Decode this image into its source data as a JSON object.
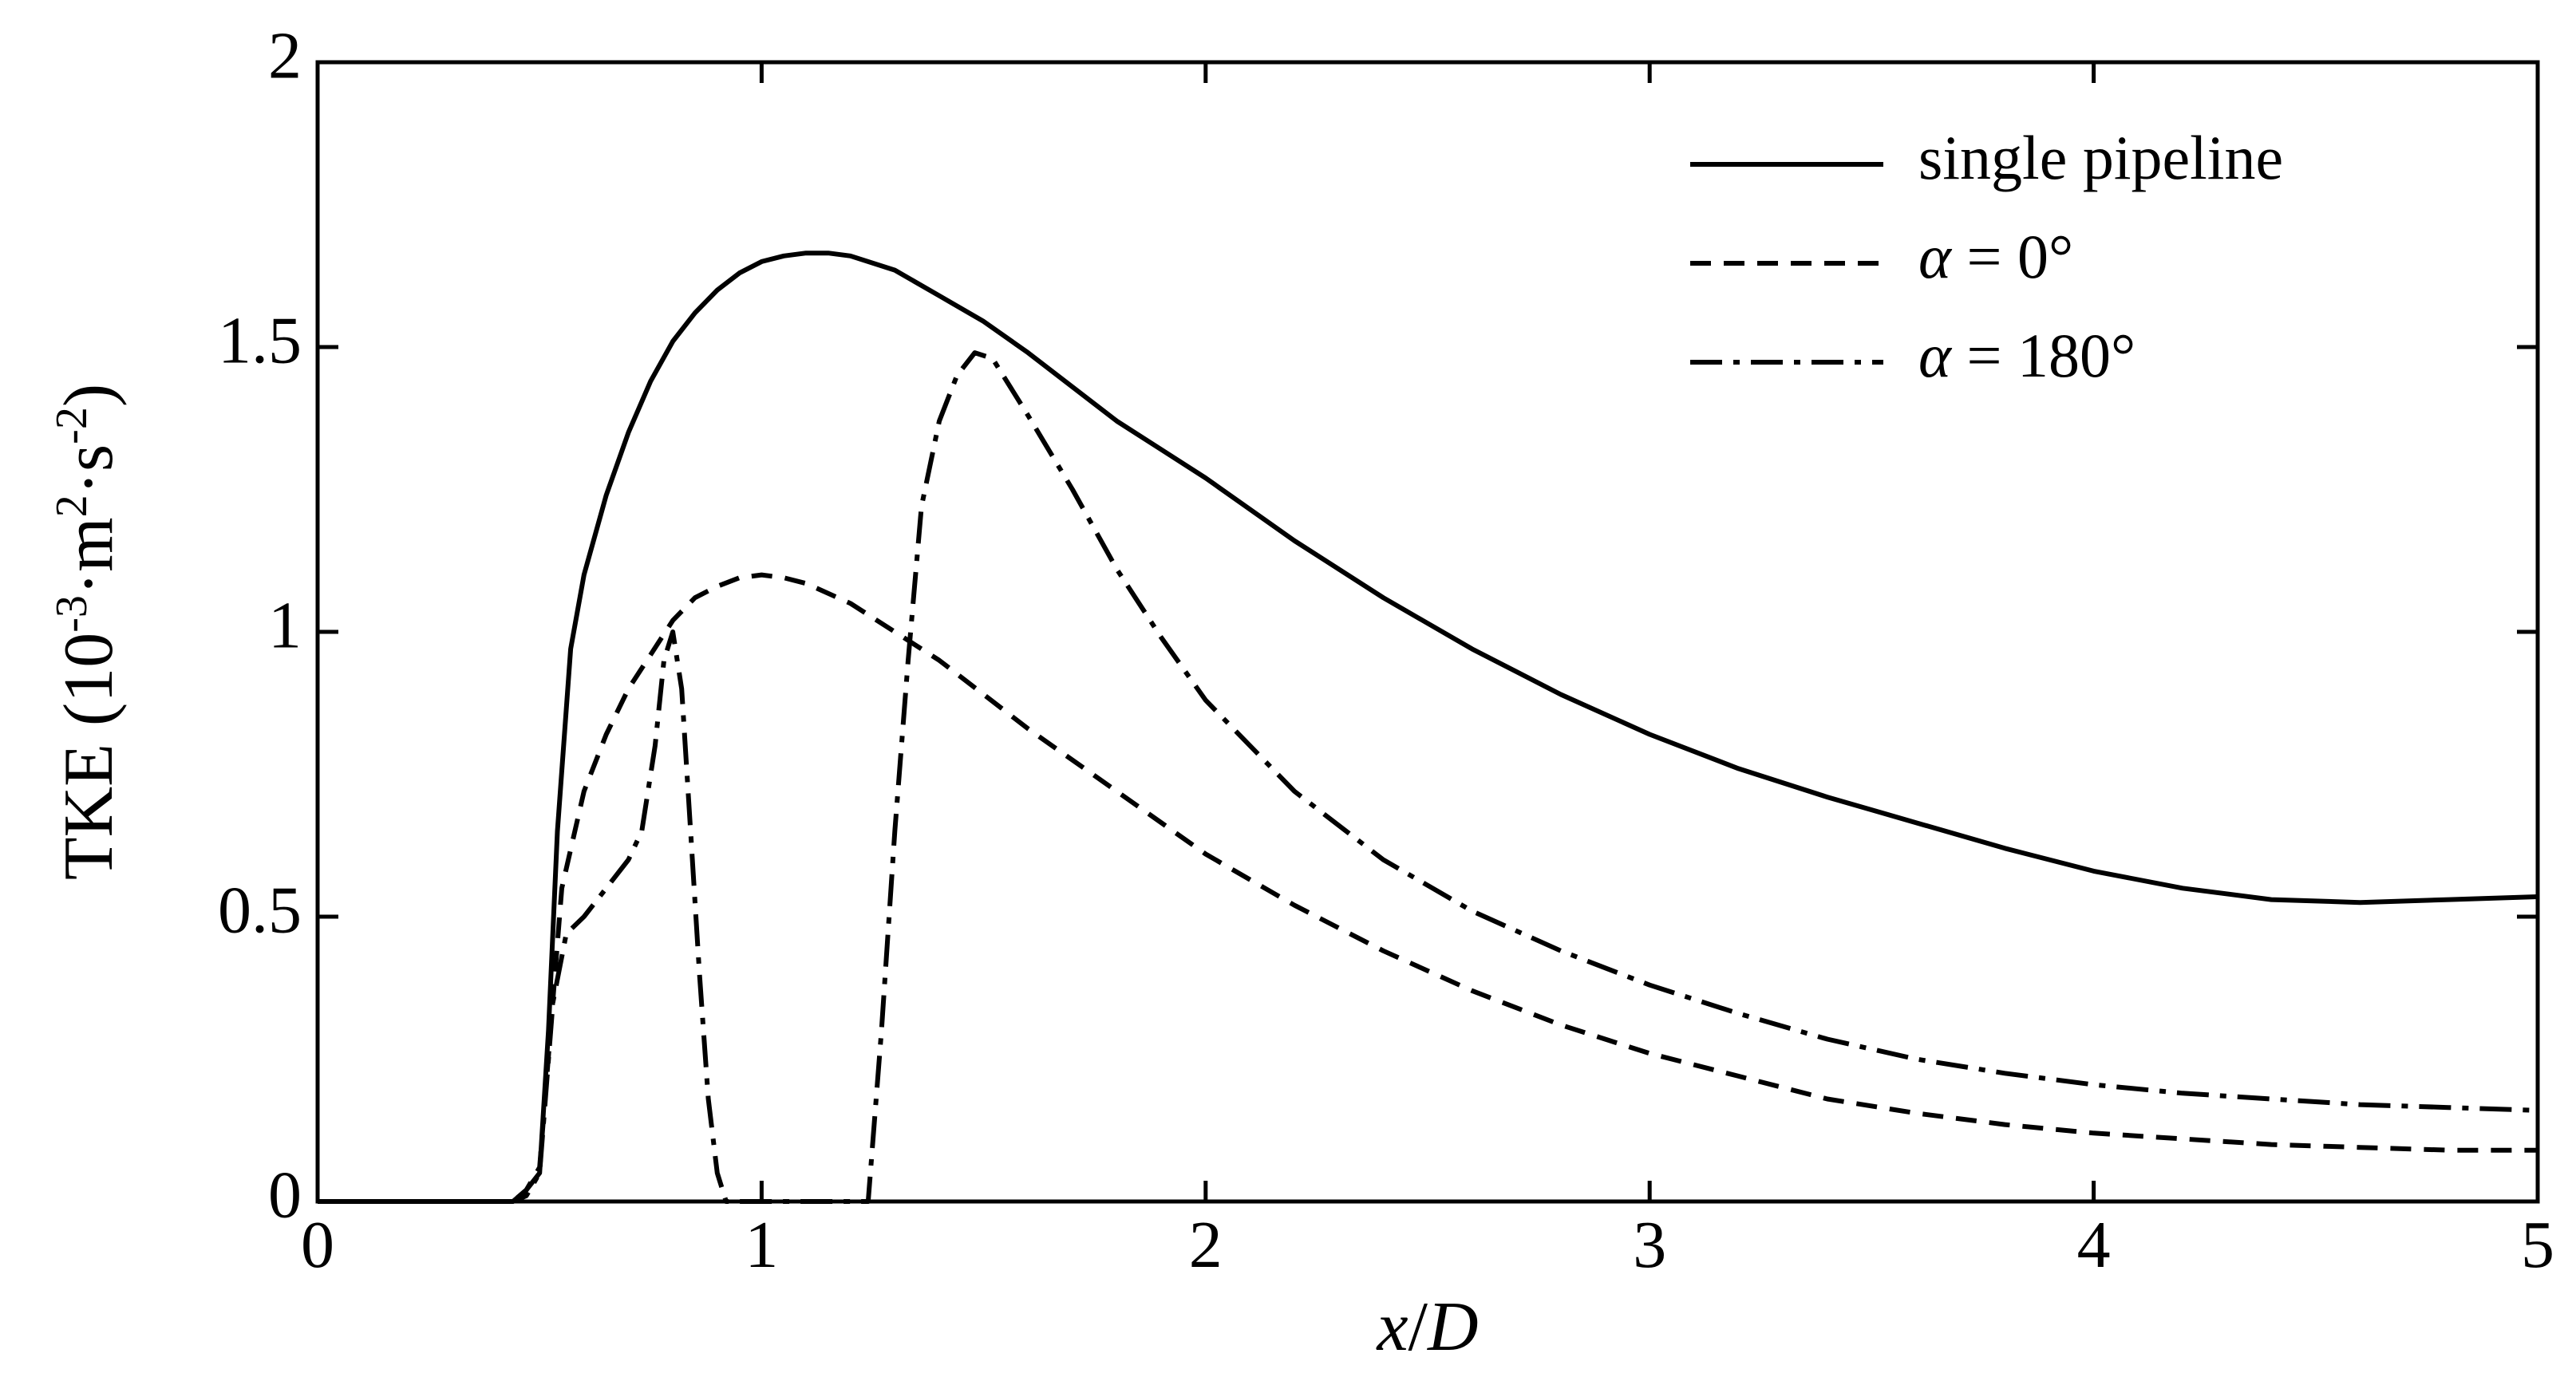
{
  "chart_data": {
    "type": "line",
    "xlabel": {
      "parts": [
        {
          "text": "x",
          "italic": true
        },
        {
          "text": "/",
          "italic": false
        },
        {
          "text": "D",
          "italic": true
        }
      ]
    },
    "ylabel": {
      "parts": [
        {
          "text": "TKE (10",
          "sup": false
        },
        {
          "text": "-3",
          "sup": true
        },
        {
          "text": "·m",
          "sup": false
        },
        {
          "text": "2",
          "sup": true
        },
        {
          "text": "·s",
          "sup": false
        },
        {
          "text": "-2",
          "sup": true
        },
        {
          "text": ")",
          "sup": false
        }
      ]
    },
    "xlim": [
      0,
      5
    ],
    "ylim": [
      0,
      2
    ],
    "x_ticks": [
      0,
      1,
      2,
      3,
      4,
      5
    ],
    "x_tick_labels": [
      "0",
      "1",
      "2",
      "3",
      "4",
      "5"
    ],
    "y_ticks": [
      0,
      0.5,
      1,
      1.5,
      2
    ],
    "y_tick_labels": [
      "0",
      "0.5",
      "1",
      "1.5",
      "2"
    ],
    "grid": false,
    "legend_position": "top-right",
    "series": [
      {
        "name": "single pipeline",
        "label_parts": [
          {
            "text": "single pipeline",
            "italic": false
          }
        ],
        "style": "solid",
        "x": [
          0,
          0.44,
          0.47,
          0.5,
          0.52,
          0.54,
          0.57,
          0.6,
          0.65,
          0.7,
          0.75,
          0.8,
          0.85,
          0.9,
          0.95,
          1.0,
          1.05,
          1.1,
          1.15,
          1.2,
          1.3,
          1.4,
          1.5,
          1.6,
          1.7,
          1.8,
          1.9,
          2.0,
          2.2,
          2.4,
          2.6,
          2.8,
          3.0,
          3.2,
          3.4,
          3.6,
          3.8,
          4.0,
          4.2,
          4.4,
          4.6,
          4.8,
          5.0
        ],
        "y": [
          0,
          0,
          0.02,
          0.05,
          0.3,
          0.65,
          0.97,
          1.1,
          1.24,
          1.35,
          1.44,
          1.51,
          1.56,
          1.6,
          1.63,
          1.65,
          1.66,
          1.665,
          1.665,
          1.66,
          1.635,
          1.59,
          1.545,
          1.49,
          1.43,
          1.37,
          1.32,
          1.27,
          1.16,
          1.06,
          0.97,
          0.89,
          0.82,
          0.76,
          0.71,
          0.665,
          0.62,
          0.58,
          0.55,
          0.53,
          0.525,
          0.53,
          0.535
        ]
      },
      {
        "name": "α = 0°",
        "label_parts": [
          {
            "text": "α",
            "italic": true
          },
          {
            "text": " = 0°",
            "italic": false
          }
        ],
        "style": "dashed",
        "x": [
          0,
          0.44,
          0.47,
          0.5,
          0.55,
          0.6,
          0.65,
          0.7,
          0.75,
          0.8,
          0.85,
          0.9,
          0.95,
          1.0,
          1.05,
          1.1,
          1.2,
          1.3,
          1.4,
          1.5,
          1.6,
          1.8,
          2.0,
          2.2,
          2.4,
          2.6,
          2.8,
          3.0,
          3.2,
          3.4,
          3.6,
          3.8,
          4.0,
          4.2,
          4.4,
          4.6,
          4.8,
          5.0
        ],
        "y": [
          0,
          0,
          0.02,
          0.06,
          0.55,
          0.72,
          0.82,
          0.9,
          0.96,
          1.02,
          1.06,
          1.08,
          1.095,
          1.1,
          1.095,
          1.085,
          1.05,
          1.0,
          0.95,
          0.89,
          0.83,
          0.72,
          0.61,
          0.52,
          0.44,
          0.37,
          0.31,
          0.26,
          0.22,
          0.18,
          0.155,
          0.135,
          0.12,
          0.11,
          0.1,
          0.095,
          0.09,
          0.09
        ]
      },
      {
        "name": "α = 180°",
        "label_parts": [
          {
            "text": "α",
            "italic": true
          },
          {
            "text": " = 180°",
            "italic": false
          }
        ],
        "style": "dashdot",
        "x": [
          0,
          0.44,
          0.47,
          0.5,
          0.53,
          0.56,
          0.6,
          0.65,
          0.7,
          0.73,
          0.76,
          0.78,
          0.8,
          0.82,
          0.84,
          0.86,
          0.88,
          0.9,
          0.92,
          1.24,
          1.27,
          1.3,
          1.33,
          1.36,
          1.4,
          1.44,
          1.48,
          1.52,
          1.6,
          1.7,
          1.8,
          1.9,
          2.0,
          2.2,
          2.4,
          2.6,
          2.8,
          3.0,
          3.2,
          3.4,
          3.6,
          3.8,
          4.0,
          4.2,
          4.4,
          4.6,
          4.8,
          5.0
        ],
        "y": [
          0,
          0,
          0.01,
          0.05,
          0.35,
          0.47,
          0.5,
          0.55,
          0.6,
          0.65,
          0.8,
          0.95,
          1.0,
          0.9,
          0.65,
          0.4,
          0.18,
          0.05,
          0,
          0,
          0.3,
          0.65,
          0.95,
          1.22,
          1.37,
          1.45,
          1.49,
          1.48,
          1.38,
          1.25,
          1.11,
          0.99,
          0.88,
          0.72,
          0.6,
          0.51,
          0.44,
          0.38,
          0.33,
          0.285,
          0.25,
          0.225,
          0.205,
          0.19,
          0.18,
          0.17,
          0.165,
          0.16
        ]
      }
    ]
  }
}
